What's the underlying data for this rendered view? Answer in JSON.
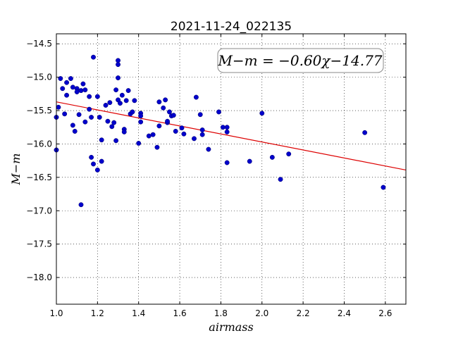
{
  "chart_data": {
    "type": "scatter",
    "title": "2021-11-24_022135",
    "xlabel": "airmass",
    "ylabel": "M−m",
    "xlim": [
      1.0,
      2.7
    ],
    "ylim": [
      -18.4,
      -14.35
    ],
    "y_inverted": true,
    "xticks": [
      "1.0",
      "1.2",
      "1.4",
      "1.6",
      "1.8",
      "2.0",
      "2.2",
      "2.4",
      "2.6"
    ],
    "yticks": [
      "−14.5",
      "−15.0",
      "−15.5",
      "−16.0",
      "−16.5",
      "−17.0",
      "−17.5",
      "−18.0"
    ],
    "grid": true,
    "annotation": "M−m = −0.60χ−14.77",
    "colors": {
      "points": "#0000cc",
      "fit_line": "#dd0000"
    },
    "fit": {
      "slope": -0.6,
      "intercept": -14.77
    },
    "points": [
      {
        "x": 1.0,
        "y": -15.6
      },
      {
        "x": 1.0,
        "y": -16.09
      },
      {
        "x": 1.01,
        "y": -15.45
      },
      {
        "x": 1.02,
        "y": -15.02
      },
      {
        "x": 1.03,
        "y": -15.17
      },
      {
        "x": 1.05,
        "y": -15.08
      },
      {
        "x": 1.05,
        "y": -15.27
      },
      {
        "x": 1.04,
        "y": -15.55
      },
      {
        "x": 1.07,
        "y": -15.02
      },
      {
        "x": 1.08,
        "y": -15.15
      },
      {
        "x": 1.08,
        "y": -15.72
      },
      {
        "x": 1.09,
        "y": -15.81
      },
      {
        "x": 1.1,
        "y": -15.17
      },
      {
        "x": 1.1,
        "y": -15.22
      },
      {
        "x": 1.11,
        "y": -15.56
      },
      {
        "x": 1.12,
        "y": -16.91
      },
      {
        "x": 1.12,
        "y": -15.2
      },
      {
        "x": 1.13,
        "y": -15.1
      },
      {
        "x": 1.14,
        "y": -15.19
      },
      {
        "x": 1.14,
        "y": -15.67
      },
      {
        "x": 1.16,
        "y": -15.29
      },
      {
        "x": 1.16,
        "y": -15.48
      },
      {
        "x": 1.17,
        "y": -15.6
      },
      {
        "x": 1.17,
        "y": -16.2
      },
      {
        "x": 1.18,
        "y": -14.7
      },
      {
        "x": 1.18,
        "y": -16.3
      },
      {
        "x": 1.2,
        "y": -15.29
      },
      {
        "x": 1.2,
        "y": -16.39
      },
      {
        "x": 1.21,
        "y": -15.6
      },
      {
        "x": 1.22,
        "y": -15.94
      },
      {
        "x": 1.22,
        "y": -16.26
      },
      {
        "x": 1.24,
        "y": -15.42
      },
      {
        "x": 1.25,
        "y": -15.66
      },
      {
        "x": 1.26,
        "y": -15.38
      },
      {
        "x": 1.27,
        "y": -15.74
      },
      {
        "x": 1.28,
        "y": -15.68
      },
      {
        "x": 1.29,
        "y": -15.95
      },
      {
        "x": 1.29,
        "y": -15.19
      },
      {
        "x": 1.3,
        "y": -14.75
      },
      {
        "x": 1.3,
        "y": -14.81
      },
      {
        "x": 1.3,
        "y": -15.01
      },
      {
        "x": 1.3,
        "y": -15.34
      },
      {
        "x": 1.31,
        "y": -15.39
      },
      {
        "x": 1.32,
        "y": -15.27
      },
      {
        "x": 1.33,
        "y": -15.78
      },
      {
        "x": 1.33,
        "y": -15.82
      },
      {
        "x": 1.34,
        "y": -15.35
      },
      {
        "x": 1.35,
        "y": -15.2
      },
      {
        "x": 1.36,
        "y": -15.55
      },
      {
        "x": 1.37,
        "y": -15.52
      },
      {
        "x": 1.38,
        "y": -15.35
      },
      {
        "x": 1.4,
        "y": -15.99
      },
      {
        "x": 1.41,
        "y": -15.54
      },
      {
        "x": 1.41,
        "y": -15.58
      },
      {
        "x": 1.41,
        "y": -15.67
      },
      {
        "x": 1.45,
        "y": -15.88
      },
      {
        "x": 1.47,
        "y": -15.86
      },
      {
        "x": 1.49,
        "y": -16.05
      },
      {
        "x": 1.5,
        "y": -15.73
      },
      {
        "x": 1.5,
        "y": -15.37
      },
      {
        "x": 1.52,
        "y": -15.46
      },
      {
        "x": 1.53,
        "y": -15.34
      },
      {
        "x": 1.54,
        "y": -15.68
      },
      {
        "x": 1.54,
        "y": -15.66
      },
      {
        "x": 1.55,
        "y": -15.52
      },
      {
        "x": 1.56,
        "y": -15.58
      },
      {
        "x": 1.57,
        "y": -15.57
      },
      {
        "x": 1.58,
        "y": -15.81
      },
      {
        "x": 1.61,
        "y": -15.76
      },
      {
        "x": 1.62,
        "y": -15.85
      },
      {
        "x": 1.67,
        "y": -15.92
      },
      {
        "x": 1.68,
        "y": -15.3
      },
      {
        "x": 1.7,
        "y": -15.56
      },
      {
        "x": 1.71,
        "y": -15.86
      },
      {
        "x": 1.71,
        "y": -15.79
      },
      {
        "x": 1.74,
        "y": -16.08
      },
      {
        "x": 1.79,
        "y": -15.52
      },
      {
        "x": 1.81,
        "y": -15.75
      },
      {
        "x": 1.83,
        "y": -15.75
      },
      {
        "x": 1.83,
        "y": -15.82
      },
      {
        "x": 1.83,
        "y": -16.28
      },
      {
        "x": 1.94,
        "y": -16.26
      },
      {
        "x": 2.0,
        "y": -15.54
      },
      {
        "x": 2.05,
        "y": -16.2
      },
      {
        "x": 2.09,
        "y": -16.53
      },
      {
        "x": 2.13,
        "y": -16.15
      },
      {
        "x": 2.5,
        "y": -15.83
      },
      {
        "x": 2.59,
        "y": -16.65
      }
    ]
  }
}
